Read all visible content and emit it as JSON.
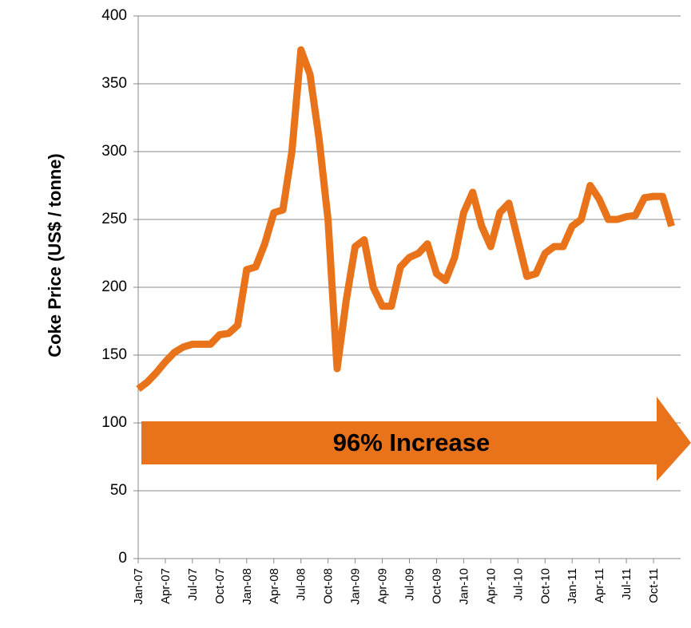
{
  "chart_data": {
    "type": "line",
    "y_label": "Coke Price (US$ / tonne)",
    "annotation": "96% Increase",
    "categories": [
      "Jan-07",
      null,
      null,
      "Apr-07",
      null,
      null,
      "Jul-07",
      null,
      null,
      "Oct-07",
      null,
      null,
      "Jan-08",
      null,
      null,
      "Apr-08",
      null,
      null,
      "Jul-08",
      null,
      null,
      "Oct-08",
      null,
      null,
      "Jan-09",
      null,
      null,
      "Apr-09",
      null,
      null,
      "Jul-09",
      null,
      null,
      "Oct-09",
      null,
      null,
      "Jan-10",
      null,
      null,
      "Apr-10",
      null,
      null,
      "Jul-10",
      null,
      null,
      "Oct-10",
      null,
      null,
      "Jan-11",
      null,
      null,
      "Apr-11",
      null,
      null,
      "Jul-11",
      null,
      null,
      "Oct-11",
      null,
      null
    ],
    "values": [
      125,
      130,
      137,
      145,
      152,
      156,
      158,
      158,
      158,
      165,
      166,
      172,
      213,
      215,
      232,
      255,
      257,
      300,
      375,
      357,
      310,
      250,
      140,
      190,
      230,
      235,
      200,
      186,
      186,
      215,
      222,
      225,
      232,
      210,
      205,
      222,
      255,
      270,
      245,
      230,
      255,
      262,
      235,
      208,
      210,
      225,
      230,
      230,
      245,
      250,
      275,
      265,
      250,
      250,
      252,
      253,
      266,
      267,
      267,
      245
    ],
    "color": "#e8731a",
    "ylim": [
      0,
      400
    ],
    "yticks": [
      0,
      50,
      100,
      150,
      200,
      250,
      300,
      350,
      400
    ],
    "grid": true
  }
}
